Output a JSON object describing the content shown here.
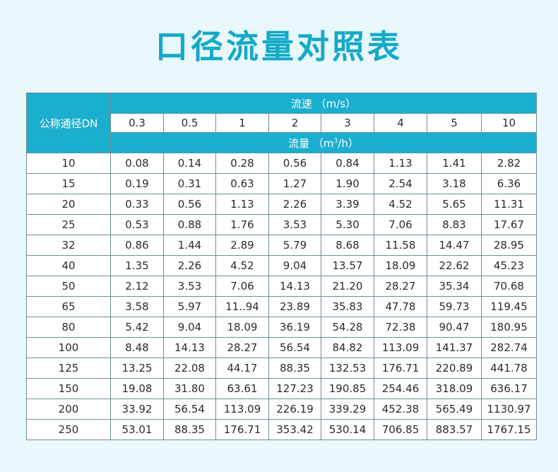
{
  "title": "口径流量对照表",
  "table": {
    "dn_header": "公称通径DN",
    "speed_header": "流速 （m/s）",
    "flow_header_prefix": "流量 （m",
    "flow_header_sup": "3",
    "flow_header_suffix": "/h）",
    "speeds": [
      "0.3",
      "0.5",
      "1",
      "2",
      "3",
      "4",
      "5",
      "10"
    ],
    "rows": [
      [
        "10",
        "0.08",
        "0.14",
        "0.28",
        "0.56",
        "0.84",
        "1.13",
        "1.41",
        "2.82"
      ],
      [
        "15",
        "0.19",
        "0.31",
        "0.63",
        "1.27",
        "1.90",
        "2.54",
        "3.18",
        "6.36"
      ],
      [
        "20",
        "0.33",
        "0.56",
        "1.13",
        "2.26",
        "3.39",
        "4.52",
        "5.65",
        "11.31"
      ],
      [
        "25",
        "0.53",
        "0.88",
        "1.76",
        "3.53",
        "5.30",
        "7.06",
        "8.83",
        "17.67"
      ],
      [
        "32",
        "0.86",
        "1.44",
        "2.89",
        "5.79",
        "8.68",
        "11.58",
        "14.47",
        "28.95"
      ],
      [
        "40",
        "1.35",
        "2.26",
        "4.52",
        "9.04",
        "13.57",
        "18.09",
        "22.62",
        "45.23"
      ],
      [
        "50",
        "2.12",
        "3.53",
        "7.06",
        "14.13",
        "21.20",
        "28.27",
        "35.34",
        "70.68"
      ],
      [
        "65",
        "3.58",
        "5.97",
        "11..94",
        "23.89",
        "35.83",
        "47.78",
        "59.73",
        "119.45"
      ],
      [
        "80",
        "5.42",
        "9.04",
        "18.09",
        "36.19",
        "54.28",
        "72.38",
        "90.47",
        "180.95"
      ],
      [
        "100",
        "8.48",
        "14.13",
        "28.27",
        "56.54",
        "84.82",
        "113.09",
        "141.37",
        "282.74"
      ],
      [
        "125",
        "13.25",
        "22.08",
        "44.17",
        "88.35",
        "132.53",
        "176.71",
        "220.89",
        "441.78"
      ],
      [
        "150",
        "19.08",
        "31.80",
        "63.61",
        "127.23",
        "190.85",
        "254.46",
        "318.09",
        "636.17"
      ],
      [
        "200",
        "33.92",
        "56.54",
        "113.09",
        "226.19",
        "339.29",
        "452.38",
        "565.49",
        "1130.97"
      ],
      [
        "250",
        "53.01",
        "88.35",
        "176.71",
        "353.42",
        "530.14",
        "706.85",
        "883.57",
        "1767.15"
      ]
    ]
  },
  "colors": {
    "accent": "#1aaecf",
    "title": "#14a9c9",
    "background": "#e8f8fc"
  }
}
